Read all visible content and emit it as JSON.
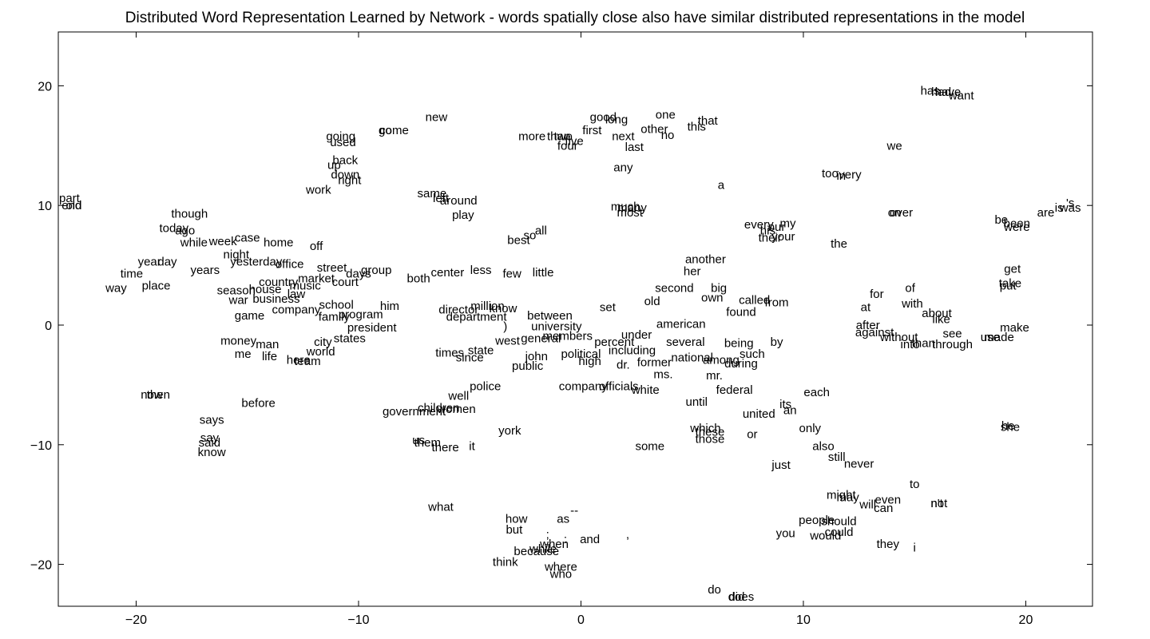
{
  "chart_data": {
    "type": "scatter",
    "title": "Distributed Word Representation Learned by Network - words spatially close also have similar distributed representations in the model",
    "xlabel": "",
    "ylabel": "",
    "xlim": [
      -23.5,
      23
    ],
    "ylim": [
      -23.5,
      24.5
    ],
    "xticks": [
      -20,
      -10,
      0,
      10,
      20
    ],
    "yticks": [
      20,
      10,
      0,
      -10,
      -20
    ],
    "xtick_labels": [
      "−20",
      "−10",
      "0",
      "10",
      "20"
    ],
    "ytick_labels": [
      "20",
      "10",
      "0",
      "−10",
      "−20"
    ],
    "grid": false,
    "marker": "text",
    "points": [
      {
        "w": "part",
        "x": -23.0,
        "y": 10.6
      },
      {
        "w": "end",
        "x": -22.9,
        "y": 10.0
      },
      {
        "w": "old",
        "x": -22.8,
        "y": 10.0
      },
      {
        "w": "though",
        "x": -17.6,
        "y": 9.3
      },
      {
        "w": "today",
        "x": -18.3,
        "y": 8.1
      },
      {
        "w": "ago",
        "x": -17.8,
        "y": 7.9
      },
      {
        "w": "while",
        "x": -17.4,
        "y": 6.9
      },
      {
        "w": "week",
        "x": -16.1,
        "y": 7.0
      },
      {
        "w": "case",
        "x": -15.0,
        "y": 7.3
      },
      {
        "w": "home",
        "x": -13.6,
        "y": 6.9
      },
      {
        "w": "off",
        "x": -11.9,
        "y": 6.6
      },
      {
        "w": "night",
        "x": -15.5,
        "y": 5.9
      },
      {
        "w": "yesterday",
        "x": -14.6,
        "y": 5.3
      },
      {
        "w": "year",
        "x": -19.4,
        "y": 5.3
      },
      {
        "w": "day",
        "x": -18.6,
        "y": 5.3
      },
      {
        "w": "office",
        "x": -13.1,
        "y": 5.1
      },
      {
        "w": "years",
        "x": -16.9,
        "y": 4.6
      },
      {
        "w": "street",
        "x": -11.2,
        "y": 4.8
      },
      {
        "w": "group",
        "x": -9.2,
        "y": 4.6
      },
      {
        "w": "days",
        "x": -10.0,
        "y": 4.3
      },
      {
        "w": "time",
        "x": -20.2,
        "y": 4.3
      },
      {
        "w": "country",
        "x": -13.6,
        "y": 3.6
      },
      {
        "w": "court",
        "x": -10.6,
        "y": 3.6
      },
      {
        "w": "music",
        "x": -12.4,
        "y": 3.3
      },
      {
        "w": "market",
        "x": -11.9,
        "y": 3.9
      },
      {
        "w": "both",
        "x": -7.3,
        "y": 3.9
      },
      {
        "w": "center",
        "x": -6.0,
        "y": 4.4
      },
      {
        "w": "less",
        "x": -4.5,
        "y": 4.6
      },
      {
        "w": "few",
        "x": -3.1,
        "y": 4.3
      },
      {
        "w": "little",
        "x": -1.7,
        "y": 4.4
      },
      {
        "w": "way",
        "x": -20.9,
        "y": 3.1
      },
      {
        "w": "place",
        "x": -19.1,
        "y": 3.3
      },
      {
        "w": "season",
        "x": -15.5,
        "y": 2.9
      },
      {
        "w": "house",
        "x": -14.2,
        "y": 3.0
      },
      {
        "w": "law",
        "x": -12.8,
        "y": 2.6
      },
      {
        "w": "war",
        "x": -15.4,
        "y": 2.1
      },
      {
        "w": "business",
        "x": -13.7,
        "y": 2.2
      },
      {
        "w": "school",
        "x": -11.0,
        "y": 1.7
      },
      {
        "w": "company",
        "x": -12.8,
        "y": 1.3
      },
      {
        "w": "program",
        "x": -9.9,
        "y": 0.9
      },
      {
        "w": "family",
        "x": -11.1,
        "y": 0.7
      },
      {
        "w": "game",
        "x": -14.9,
        "y": 0.8
      },
      {
        "w": "him",
        "x": -8.6,
        "y": 1.6
      },
      {
        "w": "president",
        "x": -9.4,
        "y": -0.2
      },
      {
        "w": "money",
        "x": -15.4,
        "y": -1.3
      },
      {
        "w": "man",
        "x": -14.1,
        "y": -1.6
      },
      {
        "w": "states",
        "x": -10.4,
        "y": -1.1
      },
      {
        "w": "city",
        "x": -11.6,
        "y": -1.4
      },
      {
        "w": "me",
        "x": -15.2,
        "y": -2.4
      },
      {
        "w": "life",
        "x": -14.0,
        "y": -2.6
      },
      {
        "w": "world",
        "x": -11.7,
        "y": -2.2
      },
      {
        "w": "here",
        "x": -12.7,
        "y": -2.9
      },
      {
        "w": "team",
        "x": -12.3,
        "y": -3.0
      },
      {
        "w": "million",
        "x": -4.2,
        "y": 1.6
      },
      {
        "w": "know",
        "x": -3.5,
        "y": 1.4
      },
      {
        "w": "director",
        "x": -5.5,
        "y": 1.3
      },
      {
        "w": "department",
        "x": -4.7,
        "y": 0.7
      },
      {
        "w": "between",
        "x": -1.4,
        "y": 0.8
      },
      {
        "w": ")",
        "x": -3.4,
        "y": -0.1
      },
      {
        "w": "university",
        "x": -1.1,
        "y": -0.1
      },
      {
        "w": "members",
        "x": -0.6,
        "y": -0.9
      },
      {
        "w": "general",
        "x": -1.8,
        "y": -1.1
      },
      {
        "w": "west",
        "x": -3.3,
        "y": -1.3
      },
      {
        "w": "times",
        "x": -5.9,
        "y": -2.3
      },
      {
        "w": "state",
        "x": -4.5,
        "y": -2.1
      },
      {
        "w": "since",
        "x": -5.0,
        "y": -2.7
      },
      {
        "w": "john",
        "x": -2.0,
        "y": -2.6
      },
      {
        "w": "public",
        "x": -2.4,
        "y": -3.4
      },
      {
        "w": "political",
        "x": 0.0,
        "y": -2.4
      },
      {
        "w": "high",
        "x": 0.4,
        "y": -3.0
      },
      {
        "w": "set",
        "x": 1.2,
        "y": 1.5
      },
      {
        "w": "old",
        "x": 3.2,
        "y": 2.0
      },
      {
        "w": "second",
        "x": 4.2,
        "y": 3.1
      },
      {
        "w": "big",
        "x": 6.2,
        "y": 3.1
      },
      {
        "w": "own",
        "x": 5.9,
        "y": 2.3
      },
      {
        "w": "another",
        "x": 5.6,
        "y": 5.5
      },
      {
        "w": "her",
        "x": 5.0,
        "y": 4.5
      },
      {
        "w": "american",
        "x": 4.5,
        "y": 0.1
      },
      {
        "w": "under",
        "x": 2.5,
        "y": -0.8
      },
      {
        "w": "percent",
        "x": 1.5,
        "y": -1.4
      },
      {
        "w": "several",
        "x": 4.7,
        "y": -1.4
      },
      {
        "w": "including",
        "x": 2.3,
        "y": -2.1
      },
      {
        "w": "national",
        "x": 5.0,
        "y": -2.7
      },
      {
        "w": "dr.",
        "x": 1.9,
        "y": -3.3
      },
      {
        "w": "former",
        "x": 3.3,
        "y": -3.1
      },
      {
        "w": "ms.",
        "x": 3.7,
        "y": -4.1
      },
      {
        "w": "mr.",
        "x": 6.0,
        "y": -4.2
      },
      {
        "w": "company",
        "x": 0.1,
        "y": -5.1
      },
      {
        "w": "officials",
        "x": 1.7,
        "y": -5.1
      },
      {
        "w": "white",
        "x": 2.9,
        "y": -5.4
      },
      {
        "w": "federal",
        "x": 6.9,
        "y": -5.4
      },
      {
        "w": "until",
        "x": 5.2,
        "y": -6.4
      },
      {
        "w": "found",
        "x": 7.2,
        "y": 1.1
      },
      {
        "w": "called",
        "x": 7.8,
        "y": 2.1
      },
      {
        "w": "from",
        "x": 8.8,
        "y": 1.9
      },
      {
        "w": "being",
        "x": 7.1,
        "y": -1.5
      },
      {
        "w": "by",
        "x": 8.8,
        "y": -1.4
      },
      {
        "w": "such",
        "x": 7.7,
        "y": -2.4
      },
      {
        "w": "among",
        "x": 6.3,
        "y": -2.9
      },
      {
        "w": "during",
        "x": 7.2,
        "y": -3.2
      },
      {
        "w": "police",
        "x": -4.3,
        "y": -5.1
      },
      {
        "w": "well",
        "x": -5.5,
        "y": -5.9
      },
      {
        "w": "children",
        "x": -6.4,
        "y": -6.9
      },
      {
        "w": "women",
        "x": -5.6,
        "y": -7.0
      },
      {
        "w": "government",
        "x": -7.5,
        "y": -7.2
      },
      {
        "w": "york",
        "x": -3.2,
        "y": -8.8
      },
      {
        "w": "us",
        "x": -7.3,
        "y": -9.6
      },
      {
        "w": "them",
        "x": -6.9,
        "y": -9.8
      },
      {
        "w": "there",
        "x": -6.1,
        "y": -10.2
      },
      {
        "w": "it",
        "x": -4.9,
        "y": -10.1
      },
      {
        "w": "some",
        "x": 3.1,
        "y": -10.1
      },
      {
        "w": "which",
        "x": 5.6,
        "y": -8.6
      },
      {
        "w": "these",
        "x": 5.8,
        "y": -8.9
      },
      {
        "w": "those",
        "x": 5.8,
        "y": -9.5
      },
      {
        "w": "or",
        "x": 7.7,
        "y": -9.1
      },
      {
        "w": "its",
        "x": 9.2,
        "y": -6.6
      },
      {
        "w": "an",
        "x": 9.4,
        "y": -7.1
      },
      {
        "w": "united",
        "x": 8.0,
        "y": -7.4
      },
      {
        "w": "each",
        "x": 10.6,
        "y": -5.6
      },
      {
        "w": "only",
        "x": 10.3,
        "y": -8.6
      },
      {
        "w": "also",
        "x": 10.9,
        "y": -10.1
      },
      {
        "w": "still",
        "x": 11.5,
        "y": -11.0
      },
      {
        "w": "never",
        "x": 12.5,
        "y": -11.6
      },
      {
        "w": "just",
        "x": 9.0,
        "y": -11.7
      },
      {
        "w": "to",
        "x": 15.0,
        "y": -13.3
      },
      {
        "w": "might",
        "x": 11.7,
        "y": -14.2
      },
      {
        "w": "may",
        "x": 12.0,
        "y": -14.4
      },
      {
        "w": "will",
        "x": 12.9,
        "y": -15.0
      },
      {
        "w": "even",
        "x": 13.8,
        "y": -14.6
      },
      {
        "w": "can",
        "x": 13.6,
        "y": -15.3
      },
      {
        "w": "not",
        "x": 16.1,
        "y": -14.9
      },
      {
        "w": "n't",
        "x": 16.0,
        "y": -14.9
      },
      {
        "w": "people",
        "x": 10.6,
        "y": -16.3
      },
      {
        "w": "should",
        "x": 11.6,
        "y": -16.4
      },
      {
        "w": "could",
        "x": 11.6,
        "y": -17.3
      },
      {
        "w": "would",
        "x": 11.0,
        "y": -17.6
      },
      {
        "w": "you",
        "x": 9.2,
        "y": -17.4
      },
      {
        "w": "they",
        "x": 13.8,
        "y": -18.3
      },
      {
        "w": "i",
        "x": 15.0,
        "y": -18.6
      },
      {
        "w": "what",
        "x": -6.3,
        "y": -15.2
      },
      {
        "w": "how",
        "x": -2.9,
        "y": -16.2
      },
      {
        "w": "as",
        "x": -0.8,
        "y": -16.2
      },
      {
        "w": "--",
        "x": -0.3,
        "y": -15.5
      },
      {
        "w": "but",
        "x": -3.0,
        "y": -17.1
      },
      {
        "w": ";",
        "x": -1.5,
        "y": -17.5
      },
      {
        "w": "when",
        "x": -1.2,
        "y": -18.3
      },
      {
        "w": ":",
        "x": -0.7,
        "y": -17.9
      },
      {
        "w": "and",
        "x": 0.4,
        "y": -17.9
      },
      {
        "w": ",",
        "x": 2.1,
        "y": -17.5
      },
      {
        "w": "because",
        "x": -2.0,
        "y": -18.9
      },
      {
        "w": "while",
        "x": -1.7,
        "y": -18.7
      },
      {
        "w": "think",
        "x": -3.4,
        "y": -19.8
      },
      {
        "w": "where",
        "x": -0.9,
        "y": -20.2
      },
      {
        "w": "who",
        "x": -0.9,
        "y": -20.8
      },
      {
        "w": "do",
        "x": 6.0,
        "y": -22.1
      },
      {
        "w": "did",
        "x": 7.0,
        "y": -22.7
      },
      {
        "w": "does",
        "x": 7.2,
        "y": -22.7
      },
      {
        "w": "now",
        "x": -19.3,
        "y": -5.8
      },
      {
        "w": "then",
        "x": -19.0,
        "y": -5.8
      },
      {
        "w": "before",
        "x": -14.5,
        "y": -6.5
      },
      {
        "w": "says",
        "x": -16.6,
        "y": -7.9
      },
      {
        "w": "say",
        "x": -16.7,
        "y": -9.4
      },
      {
        "w": "said",
        "x": -16.7,
        "y": -9.8
      },
      {
        "w": "know",
        "x": -16.6,
        "y": -10.6
      },
      {
        "w": "going",
        "x": -10.8,
        "y": 15.8
      },
      {
        "w": "used",
        "x": -10.7,
        "y": 15.3
      },
      {
        "w": "go",
        "x": -8.8,
        "y": 16.3
      },
      {
        "w": "come",
        "x": -8.4,
        "y": 16.3
      },
      {
        "w": "new",
        "x": -6.5,
        "y": 17.4
      },
      {
        "w": "back",
        "x": -10.6,
        "y": 13.8
      },
      {
        "w": "up",
        "x": -11.1,
        "y": 13.4
      },
      {
        "w": "down",
        "x": -10.6,
        "y": 12.6
      },
      {
        "w": "right",
        "x": -10.4,
        "y": 12.1
      },
      {
        "w": "work",
        "x": -11.8,
        "y": 11.3
      },
      {
        "w": "same",
        "x": -6.7,
        "y": 11.0
      },
      {
        "w": "left",
        "x": -6.3,
        "y": 10.6
      },
      {
        "w": "around",
        "x": -5.5,
        "y": 10.4
      },
      {
        "w": "play",
        "x": -5.3,
        "y": 9.2
      },
      {
        "w": "so",
        "x": -2.3,
        "y": 7.5
      },
      {
        "w": "all",
        "x": -1.8,
        "y": 7.9
      },
      {
        "w": "best",
        "x": -2.8,
        "y": 7.1
      },
      {
        "w": "more",
        "x": -2.2,
        "y": 15.8
      },
      {
        "w": "than",
        "x": -1.0,
        "y": 15.8
      },
      {
        "w": "two",
        "x": -0.8,
        "y": 15.8
      },
      {
        "w": "five",
        "x": -0.3,
        "y": 15.4
      },
      {
        "w": "four",
        "x": -0.6,
        "y": 15.0
      },
      {
        "w": "first",
        "x": 0.5,
        "y": 16.3
      },
      {
        "w": "good",
        "x": 1.0,
        "y": 17.4
      },
      {
        "w": "long",
        "x": 1.6,
        "y": 17.2
      },
      {
        "w": "next",
        "x": 1.9,
        "y": 15.8
      },
      {
        "w": "last",
        "x": 2.4,
        "y": 14.9
      },
      {
        "w": "other",
        "x": 3.3,
        "y": 16.4
      },
      {
        "w": "no",
        "x": 3.9,
        "y": 15.9
      },
      {
        "w": "one",
        "x": 3.8,
        "y": 17.6
      },
      {
        "w": "this",
        "x": 5.2,
        "y": 16.6
      },
      {
        "w": "that",
        "x": 5.7,
        "y": 17.1
      },
      {
        "w": "any",
        "x": 1.9,
        "y": 13.2
      },
      {
        "w": "a",
        "x": 6.3,
        "y": 11.7
      },
      {
        "w": "much",
        "x": 2.0,
        "y": 9.9
      },
      {
        "w": "many",
        "x": 2.3,
        "y": 9.8
      },
      {
        "w": "most",
        "x": 2.2,
        "y": 9.4
      },
      {
        "w": "every",
        "x": 8.0,
        "y": 8.4
      },
      {
        "w": "my",
        "x": 9.3,
        "y": 8.5
      },
      {
        "w": "his",
        "x": 8.4,
        "y": 7.9
      },
      {
        "w": "our",
        "x": 8.8,
        "y": 8.2
      },
      {
        "w": "their",
        "x": 8.5,
        "y": 7.3
      },
      {
        "w": "your",
        "x": 9.1,
        "y": 7.4
      },
      {
        "w": "the",
        "x": 11.6,
        "y": 6.8
      },
      {
        "w": "too",
        "x": 11.2,
        "y": 12.7
      },
      {
        "w": "in",
        "x": 11.7,
        "y": 12.5
      },
      {
        "w": "very",
        "x": 12.1,
        "y": 12.6
      },
      {
        "w": "we",
        "x": 14.1,
        "y": 15.0
      },
      {
        "w": "on",
        "x": 14.1,
        "y": 9.4
      },
      {
        "w": "over",
        "x": 14.4,
        "y": 9.4
      },
      {
        "w": "has",
        "x": 15.7,
        "y": 19.6
      },
      {
        "w": "had",
        "x": 16.2,
        "y": 19.5
      },
      {
        "w": "have",
        "x": 16.5,
        "y": 19.5
      },
      {
        "w": "want",
        "x": 17.1,
        "y": 19.2
      },
      {
        "w": "be",
        "x": 18.9,
        "y": 8.8
      },
      {
        "w": "been",
        "x": 19.6,
        "y": 8.5
      },
      {
        "w": "were",
        "x": 19.6,
        "y": 8.2
      },
      {
        "w": "are",
        "x": 20.9,
        "y": 9.4
      },
      {
        "w": "is",
        "x": 21.5,
        "y": 9.8
      },
      {
        "w": "'s",
        "x": 22.0,
        "y": 10.2
      },
      {
        "w": "was",
        "x": 22.0,
        "y": 9.8
      },
      {
        "w": "get",
        "x": 19.4,
        "y": 4.7
      },
      {
        "w": "take",
        "x": 19.3,
        "y": 3.5
      },
      {
        "w": "put",
        "x": 19.2,
        "y": 3.3
      },
      {
        "w": "make",
        "x": 19.5,
        "y": -0.2
      },
      {
        "w": "use",
        "x": 18.4,
        "y": -1.0
      },
      {
        "w": "made",
        "x": 18.8,
        "y": -1.0
      },
      {
        "w": "for",
        "x": 13.3,
        "y": 2.6
      },
      {
        "w": "of",
        "x": 14.8,
        "y": 3.1
      },
      {
        "w": "with",
        "x": 14.9,
        "y": 1.8
      },
      {
        "w": "at",
        "x": 12.8,
        "y": 1.5
      },
      {
        "w": "about",
        "x": 16.0,
        "y": 1.0
      },
      {
        "w": "like",
        "x": 16.2,
        "y": 0.5
      },
      {
        "w": "after",
        "x": 12.9,
        "y": 0.0
      },
      {
        "w": "against",
        "x": 13.2,
        "y": -0.6
      },
      {
        "w": "without",
        "x": 14.3,
        "y": -1.0
      },
      {
        "w": "see",
        "x": 16.7,
        "y": -0.7
      },
      {
        "w": "into",
        "x": 14.8,
        "y": -1.6
      },
      {
        "w": "than",
        "x": 15.4,
        "y": -1.5
      },
      {
        "w": "through",
        "x": 16.7,
        "y": -1.6
      },
      {
        "w": "he",
        "x": 19.2,
        "y": -8.4
      },
      {
        "w": "she",
        "x": 19.3,
        "y": -8.5
      }
    ]
  }
}
